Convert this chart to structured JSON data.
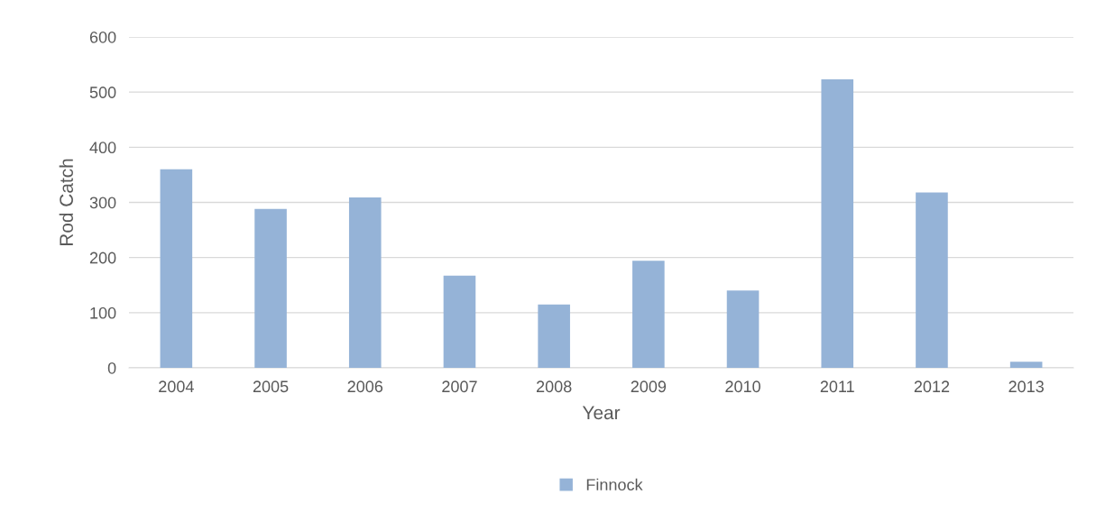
{
  "chart_data": {
    "type": "bar",
    "xlabel": "Year",
    "ylabel": "Rod Catch",
    "categories": [
      "2004",
      "2005",
      "2006",
      "2007",
      "2008",
      "2009",
      "2010",
      "2011",
      "2012",
      "2013"
    ],
    "series": [
      {
        "name": "Finnock",
        "color": "#95b3d7",
        "values": [
          360,
          288,
          309,
          167,
          115,
          194,
          140,
          523,
          318,
          11
        ]
      }
    ],
    "ylim": [
      0,
      600
    ],
    "yticks": [
      0,
      100,
      200,
      300,
      400,
      500,
      600
    ],
    "grid": "y",
    "legend": "bottom"
  }
}
